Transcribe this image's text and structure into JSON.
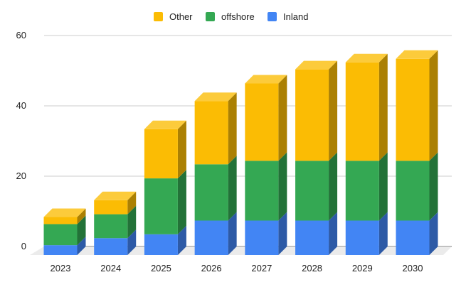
{
  "chart_data": {
    "type": "bar",
    "stacked": true,
    "style": "3d",
    "title": "",
    "xlabel": "",
    "ylabel": "",
    "categories": [
      "2023",
      "2024",
      "2025",
      "2026",
      "2027",
      "2028",
      "2029",
      "2030"
    ],
    "series": [
      {
        "name": "Inland",
        "color": "#4285f4",
        "values": [
          2.8,
          4.8,
          5.9,
          9.8,
          9.8,
          9.8,
          9.8,
          9.8
        ]
      },
      {
        "name": "offshore",
        "color": "#34a853",
        "values": [
          6.0,
          6.8,
          15.9,
          16.0,
          17.0,
          17.0,
          17.0,
          17.0
        ]
      },
      {
        "name": "Other",
        "color": "#fbbc04",
        "values": [
          2.0,
          4.0,
          14.0,
          18.0,
          22.0,
          26.0,
          28.0,
          29.0
        ]
      }
    ],
    "legend_order": [
      "Other",
      "offshore",
      "Inland"
    ],
    "ylim": [
      0,
      60
    ],
    "yticks": [
      "0",
      "20",
      "40",
      "60"
    ],
    "grid": true,
    "legend_position": "top"
  }
}
